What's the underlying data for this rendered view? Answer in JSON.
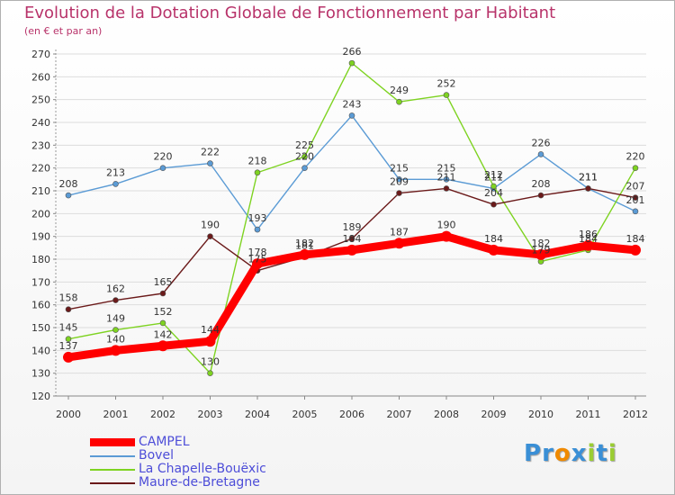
{
  "header": {
    "title": "Evolution de la Dotation Globale de Fonctionnement par Habitant",
    "subtitle": "(en € et par an)"
  },
  "chart_data": {
    "type": "line",
    "title": "Evolution de la Dotation Globale de Fonctionnement par Habitant",
    "subtitle": "(en € et par an)",
    "xlabel": "",
    "ylabel": "",
    "categories": [
      "2000",
      "2001",
      "2002",
      "2003",
      "2004",
      "2005",
      "2006",
      "2007",
      "2008",
      "2009",
      "2010",
      "2011",
      "2012"
    ],
    "ylim": [
      120,
      270
    ],
    "yticks": [
      120,
      130,
      140,
      150,
      160,
      170,
      180,
      190,
      200,
      210,
      220,
      230,
      240,
      250,
      260,
      270
    ],
    "grid": "horizontal",
    "legend_position": "bottom-left",
    "series": [
      {
        "name": "CAMPEL",
        "color": "#ff0000",
        "values": [
          137,
          140,
          142,
          144,
          178,
          182,
          184,
          187,
          190,
          184,
          182,
          186,
          184
        ]
      },
      {
        "name": "Bovel",
        "color": "#5b9bd5",
        "values": [
          208,
          213,
          220,
          222,
          193,
          220,
          243,
          215,
          215,
          211,
          226,
          211,
          201
        ]
      },
      {
        "name": "La Chapelle-Bouëxic",
        "color": "#7ed321",
        "values": [
          145,
          149,
          152,
          130,
          218,
          225,
          266,
          249,
          252,
          212,
          179,
          184,
          220
        ]
      },
      {
        "name": "Maure-de-Bretagne",
        "color": "#6b1a1a",
        "values": [
          158,
          162,
          165,
          190,
          175,
          181,
          189,
          209,
          211,
          204,
          208,
          211,
          207
        ]
      }
    ]
  },
  "logo": {
    "letters": [
      "P",
      "r",
      "o",
      "x",
      "i",
      "t",
      "i"
    ],
    "colors": [
      "#3a8fd6",
      "#3a8fd6",
      "#f08a00",
      "#3a8fd6",
      "#9acd32",
      "#3a8fd6",
      "#9acd32"
    ]
  }
}
